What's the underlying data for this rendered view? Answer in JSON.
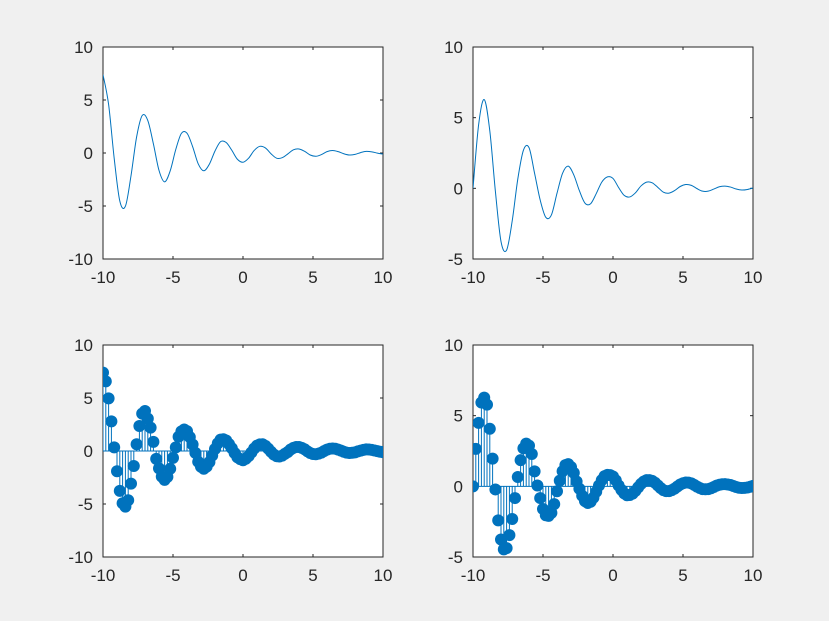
{
  "figure": {
    "background": "#f0f0f0",
    "series_color": "#0072bd"
  },
  "chart_data": [
    {
      "type": "line",
      "title": "",
      "xlabel": "",
      "ylabel": "",
      "xlim": [
        -10,
        10
      ],
      "ylim": [
        -10,
        10
      ],
      "xticks": [
        -10,
        -5,
        0,
        5,
        10
      ],
      "yticks": [
        -10,
        -5,
        0,
        5,
        10
      ],
      "grid": false,
      "x": [
        -10,
        -9.6,
        -9.2,
        -8.8,
        -8.4,
        -8,
        -7.6,
        -7.2,
        -6.8,
        -6.4,
        -6,
        -5.6,
        -5.2,
        -4.8,
        -4.4,
        -4,
        -3.6,
        -3.2,
        -2.8,
        -2.4,
        -2,
        -1.6,
        -1.2,
        -0.8,
        -0.4,
        0,
        0.4,
        0.8,
        1.2,
        1.6,
        2,
        2.4,
        2.8,
        3.2,
        3.6,
        4,
        4.4,
        4.8,
        5.2,
        5.6,
        6,
        6.4,
        6.8,
        7.2,
        7.6,
        8,
        8.4,
        8.8,
        9.2,
        9.6,
        10
      ],
      "y": [
        7.39,
        4.58,
        -0.51,
        -4.53,
        -5.02,
        -2.15,
        1.51,
        3.54,
        3.06,
        0.86,
        -1.64,
        -2.72,
        -1.68,
        0.34,
        1.85,
        1.87,
        0.61,
        -1.02,
        -1.68,
        -1.05,
        0.19,
        1.07,
        0.99,
        0.26,
        -0.59,
        -0.87,
        -0.49,
        0.24,
        0.63,
        0.48,
        -0.07,
        -0.49,
        -0.44,
        -0.09,
        0.3,
        0.38,
        0.16,
        -0.19,
        -0.31,
        -0.15,
        0.13,
        0.24,
        0.13,
        -0.07,
        -0.19,
        -0.13,
        0.04,
        0.15,
        0.11,
        -0.01,
        -0.11
      ]
    },
    {
      "type": "line",
      "title": "",
      "xlabel": "",
      "ylabel": "",
      "xlim": [
        -10,
        10
      ],
      "ylim": [
        -5,
        10
      ],
      "xticks": [
        -10,
        -5,
        0,
        5,
        10
      ],
      "yticks": [
        -5,
        0,
        5,
        10
      ],
      "grid": false,
      "x": [
        -10,
        -9.6,
        -9.2,
        -8.8,
        -8.4,
        -8,
        -7.6,
        -7.2,
        -6.8,
        -6.4,
        -6,
        -5.6,
        -5.2,
        -4.8,
        -4.4,
        -4,
        -3.6,
        -3.2,
        -2.8,
        -2.4,
        -2,
        -1.6,
        -1.2,
        -0.8,
        -0.4,
        0,
        0.4,
        0.8,
        1.2,
        1.6,
        2,
        2.4,
        2.8,
        3.2,
        3.6,
        4,
        4.4,
        4.8,
        5.2,
        5.6,
        6,
        6.4,
        6.8,
        7.2,
        7.6,
        8,
        8.4,
        8.8,
        9.2,
        9.6,
        10
      ],
      "y": [
        0,
        4.49,
        6.28,
        4.07,
        -0.22,
        -3.76,
        -4.37,
        -2.31,
        0.66,
        2.69,
        2.88,
        1.06,
        -0.83,
        -2.05,
        -1.88,
        -0.35,
        1.07,
        1.57,
        0.95,
        -0.17,
        -1.05,
        -1.09,
        -0.38,
        0.44,
        0.81,
        0.7,
        0.06,
        -0.5,
        -0.61,
        -0.32,
        0.17,
        0.44,
        0.39,
        0.07,
        -0.27,
        -0.34,
        -0.16,
        0.13,
        0.27,
        0.21,
        -0.02,
        -0.2,
        -0.2,
        -0.05,
        0.11,
        0.16,
        0.09,
        -0.05,
        -0.12,
        -0.08,
        0.03
      ]
    },
    {
      "type": "stem",
      "title": "",
      "xlabel": "",
      "ylabel": "",
      "xlim": [
        -10,
        10
      ],
      "ylim": [
        -10,
        10
      ],
      "xticks": [
        -10,
        -5,
        0,
        5,
        10
      ],
      "yticks": [
        -10,
        -5,
        0,
        5,
        10
      ],
      "grid": false,
      "x": [
        -10,
        -9.8,
        -9.6,
        -9.4,
        -9.2,
        -9,
        -8.8,
        -8.6,
        -8.4,
        -8.2,
        -8,
        -7.8,
        -7.6,
        -7.4,
        -7.2,
        -7,
        -6.8,
        -6.6,
        -6.4,
        -6.2,
        -6,
        -5.8,
        -5.6,
        -5.4,
        -5.2,
        -5,
        -4.8,
        -4.6,
        -4.4,
        -4.2,
        -4,
        -3.8,
        -3.6,
        -3.4,
        -3.2,
        -3,
        -2.8,
        -2.6,
        -2.4,
        -2.2,
        -2,
        -1.8,
        -1.6,
        -1.4,
        -1.2,
        -1,
        -0.8,
        -0.6,
        -0.4,
        -0.2,
        0,
        0.2,
        0.4,
        0.6,
        0.8,
        1,
        1.2,
        1.4,
        1.6,
        1.8,
        2,
        2.2,
        2.4,
        2.6,
        2.8,
        3,
        3.2,
        3.4,
        3.6,
        3.8,
        4,
        4.2,
        4.4,
        4.6,
        4.8,
        5,
        5.2,
        5.4,
        5.6,
        5.8,
        6,
        6.2,
        6.4,
        6.6,
        6.8,
        7,
        7.2,
        7.4,
        7.6,
        7.8,
        8,
        8.2,
        8.4,
        8.6,
        8.8,
        9,
        9.2,
        9.4,
        9.6,
        9.8,
        10
      ],
      "y": [
        7.39,
        6.57,
        4.96,
        2.79,
        0.34,
        -1.91,
        -3.76,
        -4.93,
        -5.25,
        -4.65,
        -3.08,
        -1.41,
        0.64,
        2.36,
        3.53,
        3.77,
        3.06,
        2.2,
        0.86,
        -0.74,
        -1.64,
        -2.42,
        -2.72,
        -2.44,
        -1.68,
        -0.65,
        0.34,
        1.34,
        1.85,
        2.03,
        1.87,
        1.31,
        0.61,
        -0.18,
        -1.02,
        -1.49,
        -1.68,
        -1.48,
        -1.05,
        -0.43,
        0.19,
        0.72,
        1.07,
        1.11,
        0.99,
        0.65,
        0.26,
        -0.19,
        -0.59,
        -0.77,
        -0.87,
        -0.73,
        -0.49,
        -0.14,
        0.24,
        0.51,
        0.63,
        0.64,
        0.48,
        0.22,
        -0.07,
        -0.33,
        -0.49,
        -0.52,
        -0.44,
        -0.26,
        -0.09,
        0.14,
        0.3,
        0.38,
        0.38,
        0.29,
        0.16,
        -0.03,
        -0.19,
        -0.28,
        -0.31,
        -0.25,
        -0.15,
        0.0,
        0.13,
        0.21,
        0.24,
        0.21,
        0.13,
        0.03,
        -0.07,
        -0.15,
        -0.19,
        -0.17,
        -0.13,
        -0.04,
        0.04,
        0.11,
        0.15,
        0.14,
        0.11,
        0.05,
        -0.01,
        -0.07,
        -0.11
      ]
    },
    {
      "type": "stem",
      "title": "",
      "xlabel": "",
      "ylabel": "",
      "xlim": [
        -10,
        10
      ],
      "ylim": [
        -5,
        10
      ],
      "xticks": [
        -10,
        -5,
        0,
        5,
        10
      ],
      "yticks": [
        -5,
        0,
        5,
        10
      ],
      "grid": false,
      "x": [
        -10,
        -9.8,
        -9.6,
        -9.4,
        -9.2,
        -9,
        -8.8,
        -8.6,
        -8.4,
        -8.2,
        -8,
        -7.8,
        -7.6,
        -7.4,
        -7.2,
        -7,
        -6.8,
        -6.6,
        -6.4,
        -6.2,
        -6,
        -5.8,
        -5.6,
        -5.4,
        -5.2,
        -5,
        -4.8,
        -4.6,
        -4.4,
        -4.2,
        -4,
        -3.8,
        -3.6,
        -3.4,
        -3.2,
        -3,
        -2.8,
        -2.6,
        -2.4,
        -2.2,
        -2,
        -1.8,
        -1.6,
        -1.4,
        -1.2,
        -1,
        -0.8,
        -0.6,
        -0.4,
        -0.2,
        0,
        0.2,
        0.4,
        0.6,
        0.8,
        1,
        1.2,
        1.4,
        1.6,
        1.8,
        2,
        2.2,
        2.4,
        2.6,
        2.8,
        3,
        3.2,
        3.4,
        3.6,
        3.8,
        4,
        4.2,
        4.4,
        4.6,
        4.8,
        5,
        5.2,
        5.4,
        5.6,
        5.8,
        6,
        6.2,
        6.4,
        6.6,
        6.8,
        7,
        7.2,
        7.4,
        7.6,
        7.8,
        8,
        8.2,
        8.4,
        8.6,
        8.8,
        9,
        9.2,
        9.4,
        9.6,
        9.8,
        10
      ],
      "y": [
        0,
        2.65,
        4.49,
        5.93,
        6.28,
        5.78,
        4.07,
        1.96,
        -0.22,
        -2.41,
        -3.76,
        -4.46,
        -4.37,
        -3.45,
        -2.31,
        -0.83,
        0.66,
        1.85,
        2.69,
        3.02,
        2.88,
        2.29,
        1.06,
        0.06,
        -0.83,
        -1.6,
        -2.05,
        -2.09,
        -1.88,
        -1.26,
        -0.35,
        0.4,
        1.07,
        1.5,
        1.57,
        1.37,
        0.95,
        0.34,
        -0.17,
        -0.67,
        -1.05,
        -1.18,
        -1.09,
        -0.81,
        -0.38,
        0.06,
        0.44,
        0.72,
        0.81,
        0.79,
        0.7,
        0.42,
        0.06,
        -0.25,
        -0.5,
        -0.63,
        -0.61,
        -0.52,
        -0.32,
        -0.07,
        0.17,
        0.34,
        0.44,
        0.44,
        0.39,
        0.25,
        0.07,
        -0.12,
        -0.27,
        -0.34,
        -0.34,
        -0.27,
        -0.16,
        -0.01,
        0.13,
        0.22,
        0.27,
        0.26,
        0.21,
        0.1,
        -0.02,
        -0.12,
        -0.2,
        -0.21,
        -0.2,
        -0.14,
        -0.05,
        0.05,
        0.11,
        0.15,
        0.16,
        0.13,
        0.09,
        0.02,
        -0.05,
        -0.1,
        -0.12,
        -0.11,
        -0.08,
        -0.03,
        0.03
      ]
    }
  ]
}
